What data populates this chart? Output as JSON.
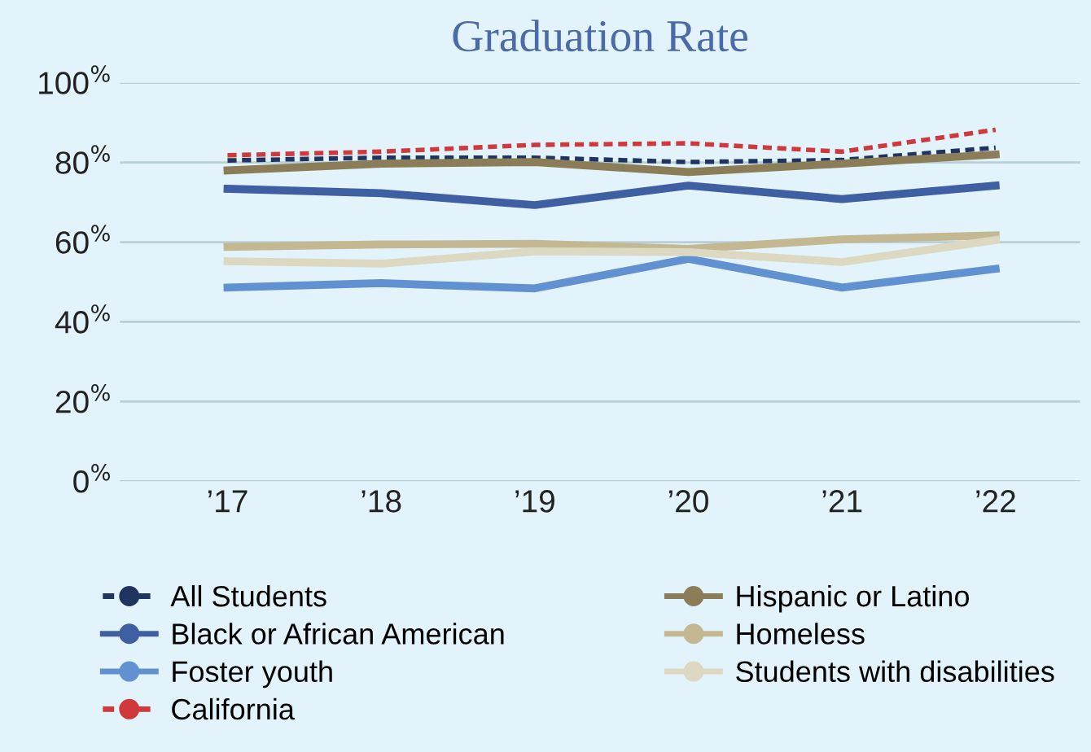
{
  "chart_data": {
    "type": "line",
    "title": "Graduation Rate",
    "categories": [
      "’17",
      "’18",
      "’19",
      "’20",
      "’21",
      "’22"
    ],
    "ylim": [
      0,
      100
    ],
    "yticks": [
      {
        "value": 0,
        "label": "0$^{%}$"
      },
      {
        "value": 20,
        "label": "20$^{%}$"
      },
      {
        "value": 40,
        "label": "40$^{%}$"
      },
      {
        "value": 60,
        "label": "60$^{%}$"
      },
      {
        "value": 80,
        "label": "80$^{%}$"
      },
      {
        "value": 100,
        "label": "100$^{%}$"
      }
    ],
    "grid": "y",
    "legend": "bottom",
    "series": [
      {
        "name": "All Students",
        "color": "#1f3560",
        "line_style": "dashed",
        "values": [
          80.5,
          81.2,
          81.2,
          80.1,
          80.6,
          83.7
        ]
      },
      {
        "name": "Black or African American",
        "color": "#3f5fa3",
        "values": [
          73.4,
          72.3,
          69.3,
          74.2,
          70.8,
          74.2
        ]
      },
      {
        "name": "Foster youth",
        "color": "#6191d0",
        "values": [
          48.6,
          49.7,
          48.4,
          55.8,
          48.6,
          53.3
        ]
      },
      {
        "name": "California",
        "color": "#d0393b",
        "line_style": "dashed",
        "values": [
          81.8,
          82.7,
          84.4,
          84.8,
          82.7,
          88.2
        ]
      },
      {
        "name": "Hispanic or Latino",
        "color": "#8b7d58",
        "values": [
          78.0,
          79.7,
          80.1,
          77.6,
          79.7,
          82.0
        ]
      },
      {
        "name": "Homeless",
        "color": "#c4b892",
        "values": [
          58.8,
          59.4,
          59.6,
          58.3,
          60.7,
          61.7
        ]
      },
      {
        "name": "Students with disabilities",
        "color": "#ddd8c2",
        "values": [
          55.2,
          54.6,
          57.7,
          57.5,
          55.0,
          60.5
        ]
      }
    ]
  }
}
